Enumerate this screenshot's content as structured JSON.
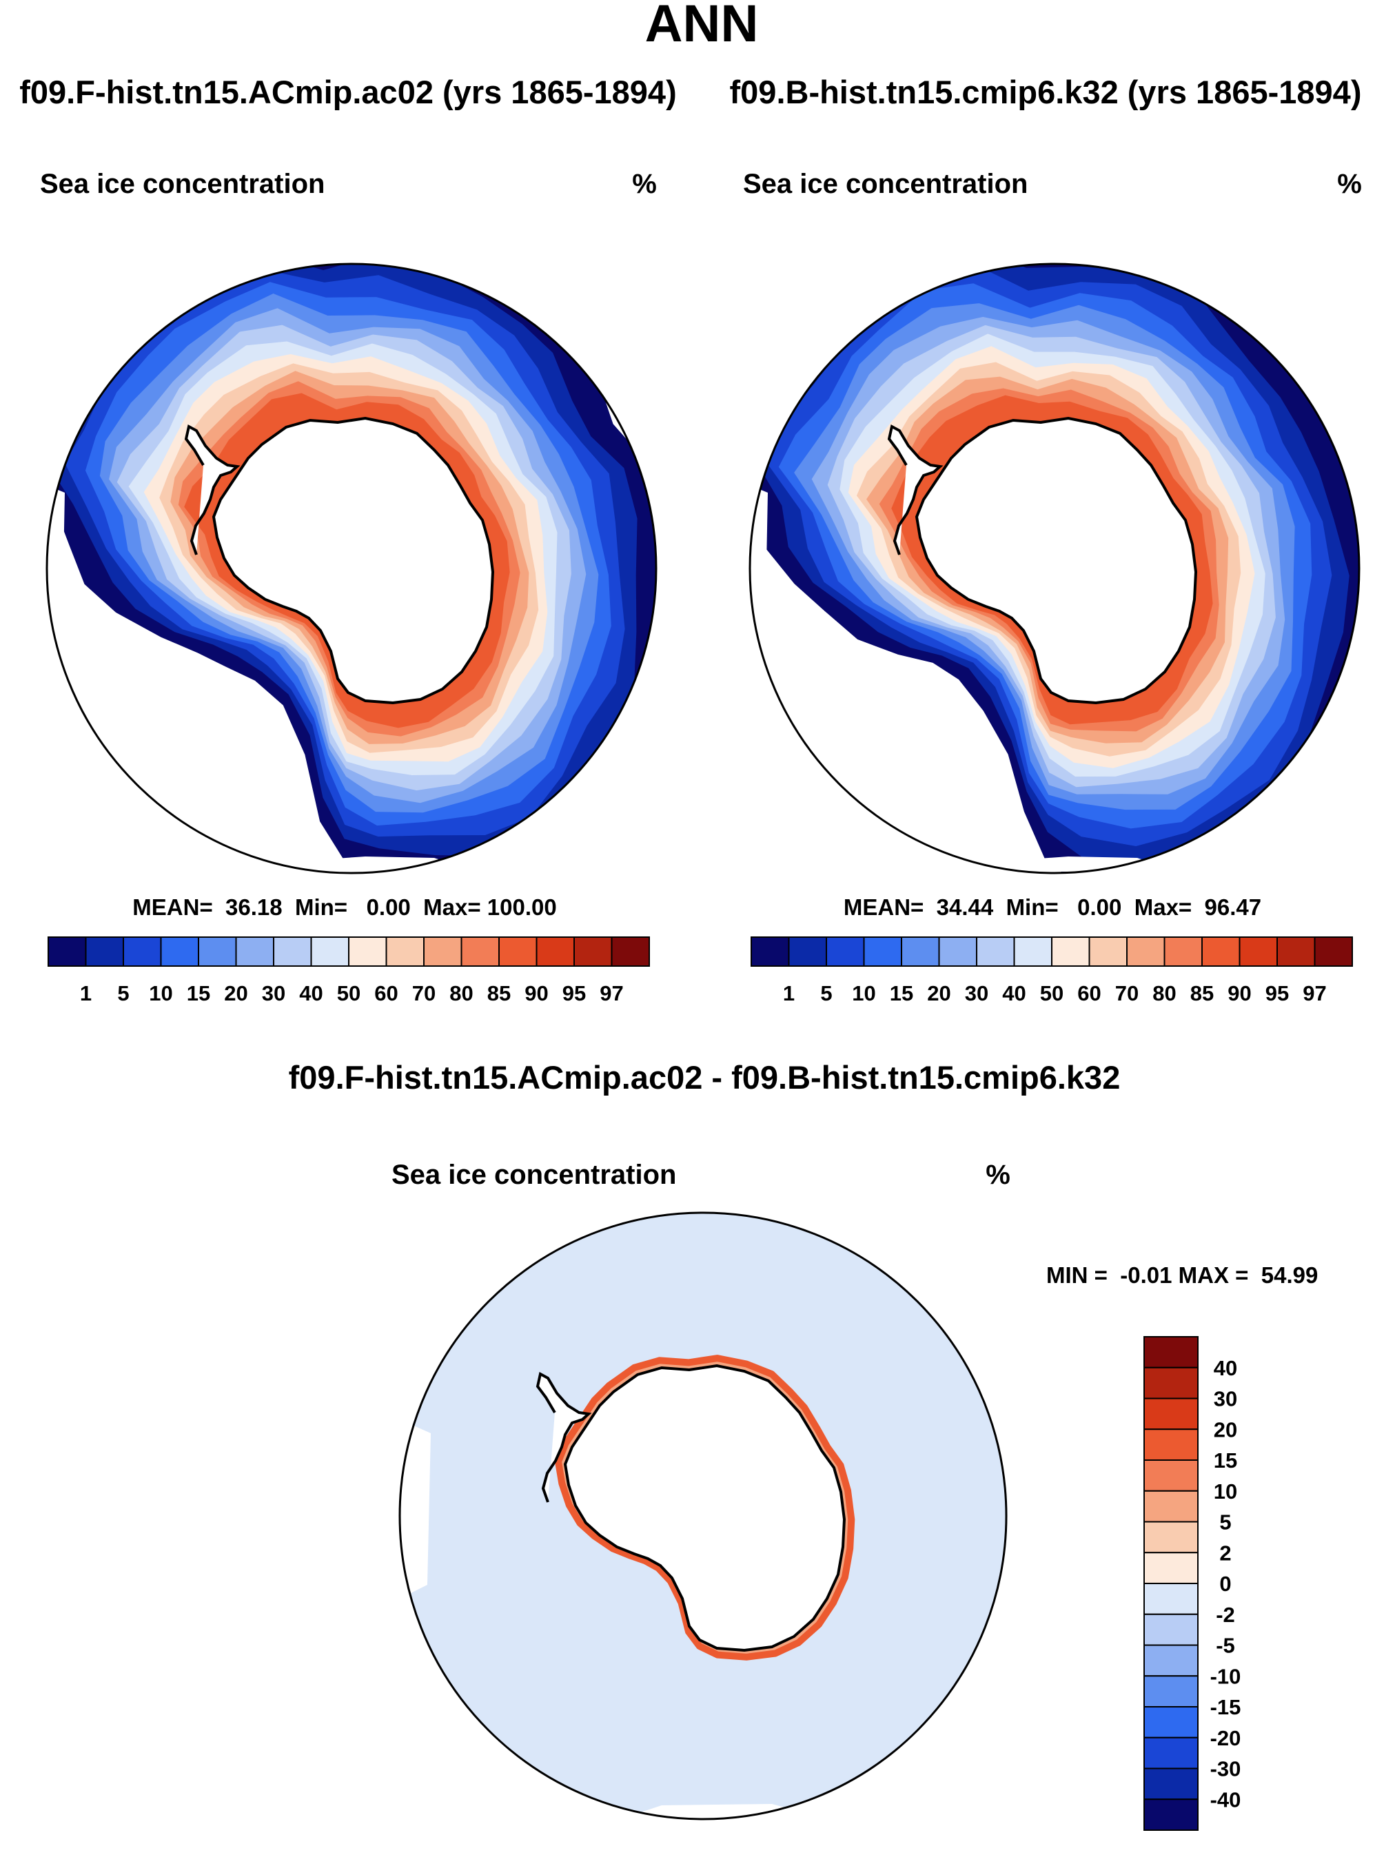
{
  "page": {
    "title": "ANN",
    "case1_title": "f09.F-hist.tn15.ACmip.ac02 (yrs 1865-1894)",
    "case2_title": "f09.B-hist.tn15.cmip6.k32 (yrs 1865-1894)",
    "diff_title": "f09.F-hist.tn15.ACmip.ac02 - f09.B-hist.tn15.cmip6.k32"
  },
  "panels": {
    "p1": {
      "variable": "Sea ice concentration",
      "units": "%",
      "stats": "MEAN=  36.18  Min=   0.00  Max= 100.00"
    },
    "p2": {
      "variable": "Sea ice concentration",
      "units": "%",
      "stats": "MEAN=  34.44  Min=   0.00  Max=  96.47"
    },
    "p3": {
      "variable": "Sea ice concentration",
      "units": "%",
      "stats": "MIN =  -0.01 MAX =  54.99"
    }
  },
  "colorbars": {
    "abs": {
      "colors": [
        "#08086b",
        "#0b2aa8",
        "#1a46d6",
        "#2e6af0",
        "#5d8ef0",
        "#8daff2",
        "#b8cdf5",
        "#dae7f9",
        "#fdeadc",
        "#f9ccb0",
        "#f5a580",
        "#f27d56",
        "#ec5a30",
        "#d93a18",
        "#b32410",
        "#7d0a0a"
      ],
      "labels": [
        "1",
        "5",
        "10",
        "15",
        "20",
        "30",
        "40",
        "50",
        "60",
        "70",
        "80",
        "85",
        "90",
        "95",
        "97"
      ]
    },
    "diff": {
      "colors": [
        "#7d0a0a",
        "#b32410",
        "#d93a18",
        "#ec5a30",
        "#f27d56",
        "#f5a580",
        "#f9ccb0",
        "#fdeadc",
        "#dae7f9",
        "#b8cdf5",
        "#8daff2",
        "#5d8ef0",
        "#2e6af0",
        "#1a46d6",
        "#0b2aa8",
        "#08086b"
      ],
      "labels": [
        "40",
        "30",
        "20",
        "15",
        "10",
        "5",
        "2",
        "0",
        "-2",
        "-5",
        "-10",
        "-15",
        "-20",
        "-30",
        "-40"
      ]
    }
  },
  "map_colors": {
    "ocean_open": "#08086b",
    "ocean_diff": "#dae7f9",
    "land": "#ffffff",
    "coast": "#000000"
  }
}
